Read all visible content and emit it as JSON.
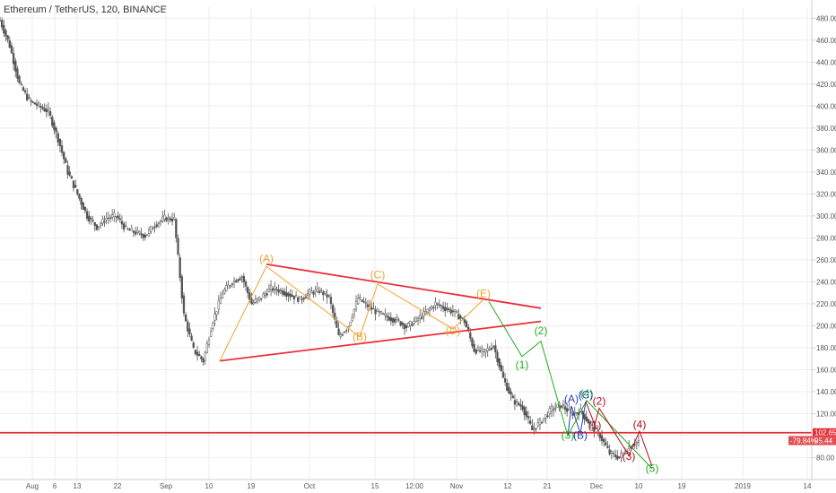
{
  "header": {
    "title": "Ethereum / TetherUS, 120, BINANCE"
  },
  "colors": {
    "candle": "#555555",
    "orange": "#f0a030",
    "red": "#e8303a",
    "green": "#22aa22",
    "blue": "#2a3fbb",
    "darkred": "#b0101a",
    "grid": "#eeeeee",
    "axis": "#cccccc"
  },
  "chart_data": {
    "type": "line",
    "ylim": [
      60,
      490
    ],
    "y_ticks": [
      "80.00",
      "100.00",
      "120.00",
      "140.00",
      "160.00",
      "180.00",
      "200.00",
      "220.00",
      "240.00",
      "260.00",
      "280.00",
      "300.00",
      "320.00",
      "340.00",
      "360.00",
      "380.00",
      "400.00",
      "420.00",
      "440.00",
      "460.00",
      "480.00"
    ],
    "x_ticks": [
      "Aug",
      "6",
      "13",
      "22",
      "Sep",
      "10",
      "19",
      "Oct",
      "15",
      "12:00",
      "Nov",
      "12",
      "21",
      "Dec",
      "10",
      "19",
      "2019",
      "14"
    ],
    "series": [
      {
        "values": [
          478,
          455,
          420,
          405,
          400,
          395,
          370,
          340,
          320,
          300,
          290,
          298,
          300,
          288,
          285,
          282,
          292,
          298,
          297,
          210,
          178,
          168,
          205,
          230,
          240,
          245,
          220,
          226,
          234,
          232,
          228,
          224,
          230,
          232,
          226,
          190,
          200,
          225,
          218,
          212,
          208,
          205,
          199,
          205,
          212,
          220,
          216,
          212,
          204,
          178,
          176,
          182,
          152,
          132,
          126,
          105,
          114,
          124,
          128,
          120,
          122,
          110,
          100,
          84,
          80,
          90,
          95
        ]
      }
    ],
    "price_tags": [
      {
        "value": "102.65",
        "y": 102.65,
        "color": "#e8303a"
      },
      {
        "value": "95.44",
        "y": 95.44,
        "color": "#e05050"
      },
      {
        "value": "-79.84%",
        "y": 95.44,
        "color": "#e05050"
      }
    ],
    "wave_labels": [
      {
        "text": "(A)",
        "x": 297,
        "y": 258,
        "color": "#f0a030"
      },
      {
        "text": "(B)",
        "x": 401,
        "y": 187,
        "color": "#f0a030"
      },
      {
        "text": "(C)",
        "x": 421,
        "y": 243,
        "color": "#f0a030"
      },
      {
        "text": "(D)",
        "x": 505,
        "y": 192,
        "color": "#f0a030"
      },
      {
        "text": "(E)",
        "x": 539,
        "y": 226,
        "color": "#f0a030"
      },
      {
        "text": "(1)",
        "x": 582,
        "y": 161,
        "color": "#22aa22"
      },
      {
        "text": "(2)",
        "x": 603,
        "y": 192,
        "color": "#22aa22"
      },
      {
        "text": "(3)",
        "x": 633,
        "y": 97,
        "color": "#22aa22"
      },
      {
        "text": "(4)",
        "x": 654,
        "y": 135,
        "color": "#22aa22"
      },
      {
        "text": "(5)",
        "x": 727,
        "y": 67,
        "color": "#22aa22"
      },
      {
        "text": "(A)",
        "x": 637,
        "y": 130,
        "color": "#2a3fbb"
      },
      {
        "text": "(B)",
        "x": 647,
        "y": 97,
        "color": "#2a3fbb"
      },
      {
        "text": "(C)",
        "x": 653,
        "y": 134,
        "color": "#2a3fbb"
      },
      {
        "text": "(1)",
        "x": 663,
        "y": 106,
        "color": "#b0101a"
      },
      {
        "text": "(2)",
        "x": 668,
        "y": 128,
        "color": "#b0101a"
      },
      {
        "text": "(3)",
        "x": 701,
        "y": 78,
        "color": "#b0101a"
      },
      {
        "text": "(4)",
        "x": 713,
        "y": 107,
        "color": "#b0101a"
      }
    ],
    "trendlines": [
      {
        "color": "#e8303a",
        "from": [
          297,
          256
        ],
        "to": [
          603,
          216
        ]
      },
      {
        "color": "#e8303a",
        "from": [
          245,
          168
        ],
        "to": [
          603,
          204
        ]
      },
      {
        "color": "#e8303a",
        "from": [
          0,
          102.65
        ],
        "to": [
          905,
          102.65
        ]
      },
      {
        "color": "#f0a030",
        "from": [
          245,
          168
        ],
        "to": [
          297,
          254
        ],
        "then": [
          [
            401,
            190
          ],
          [
            421,
            238
          ],
          [
            505,
            197
          ],
          [
            539,
            224
          ]
        ]
      },
      {
        "color": "#22aa22",
        "from": [
          545,
          222
        ],
        "to": [
          582,
          172
        ],
        "then": [
          [
            603,
            186
          ],
          [
            633,
            100
          ],
          [
            654,
            132
          ],
          [
            727,
            70
          ]
        ]
      },
      {
        "color": "#2a3fbb",
        "from": [
          633,
          100
        ],
        "to": [
          637,
          127
        ],
        "then": [
          [
            647,
            102
          ],
          [
            653,
            131
          ]
        ]
      },
      {
        "color": "#b0101a",
        "from": [
          653,
          131
        ],
        "to": [
          663,
          110
        ],
        "then": [
          [
            668,
            125
          ],
          [
            701,
            82
          ],
          [
            713,
            104
          ],
          [
            727,
            72
          ]
        ]
      }
    ]
  }
}
